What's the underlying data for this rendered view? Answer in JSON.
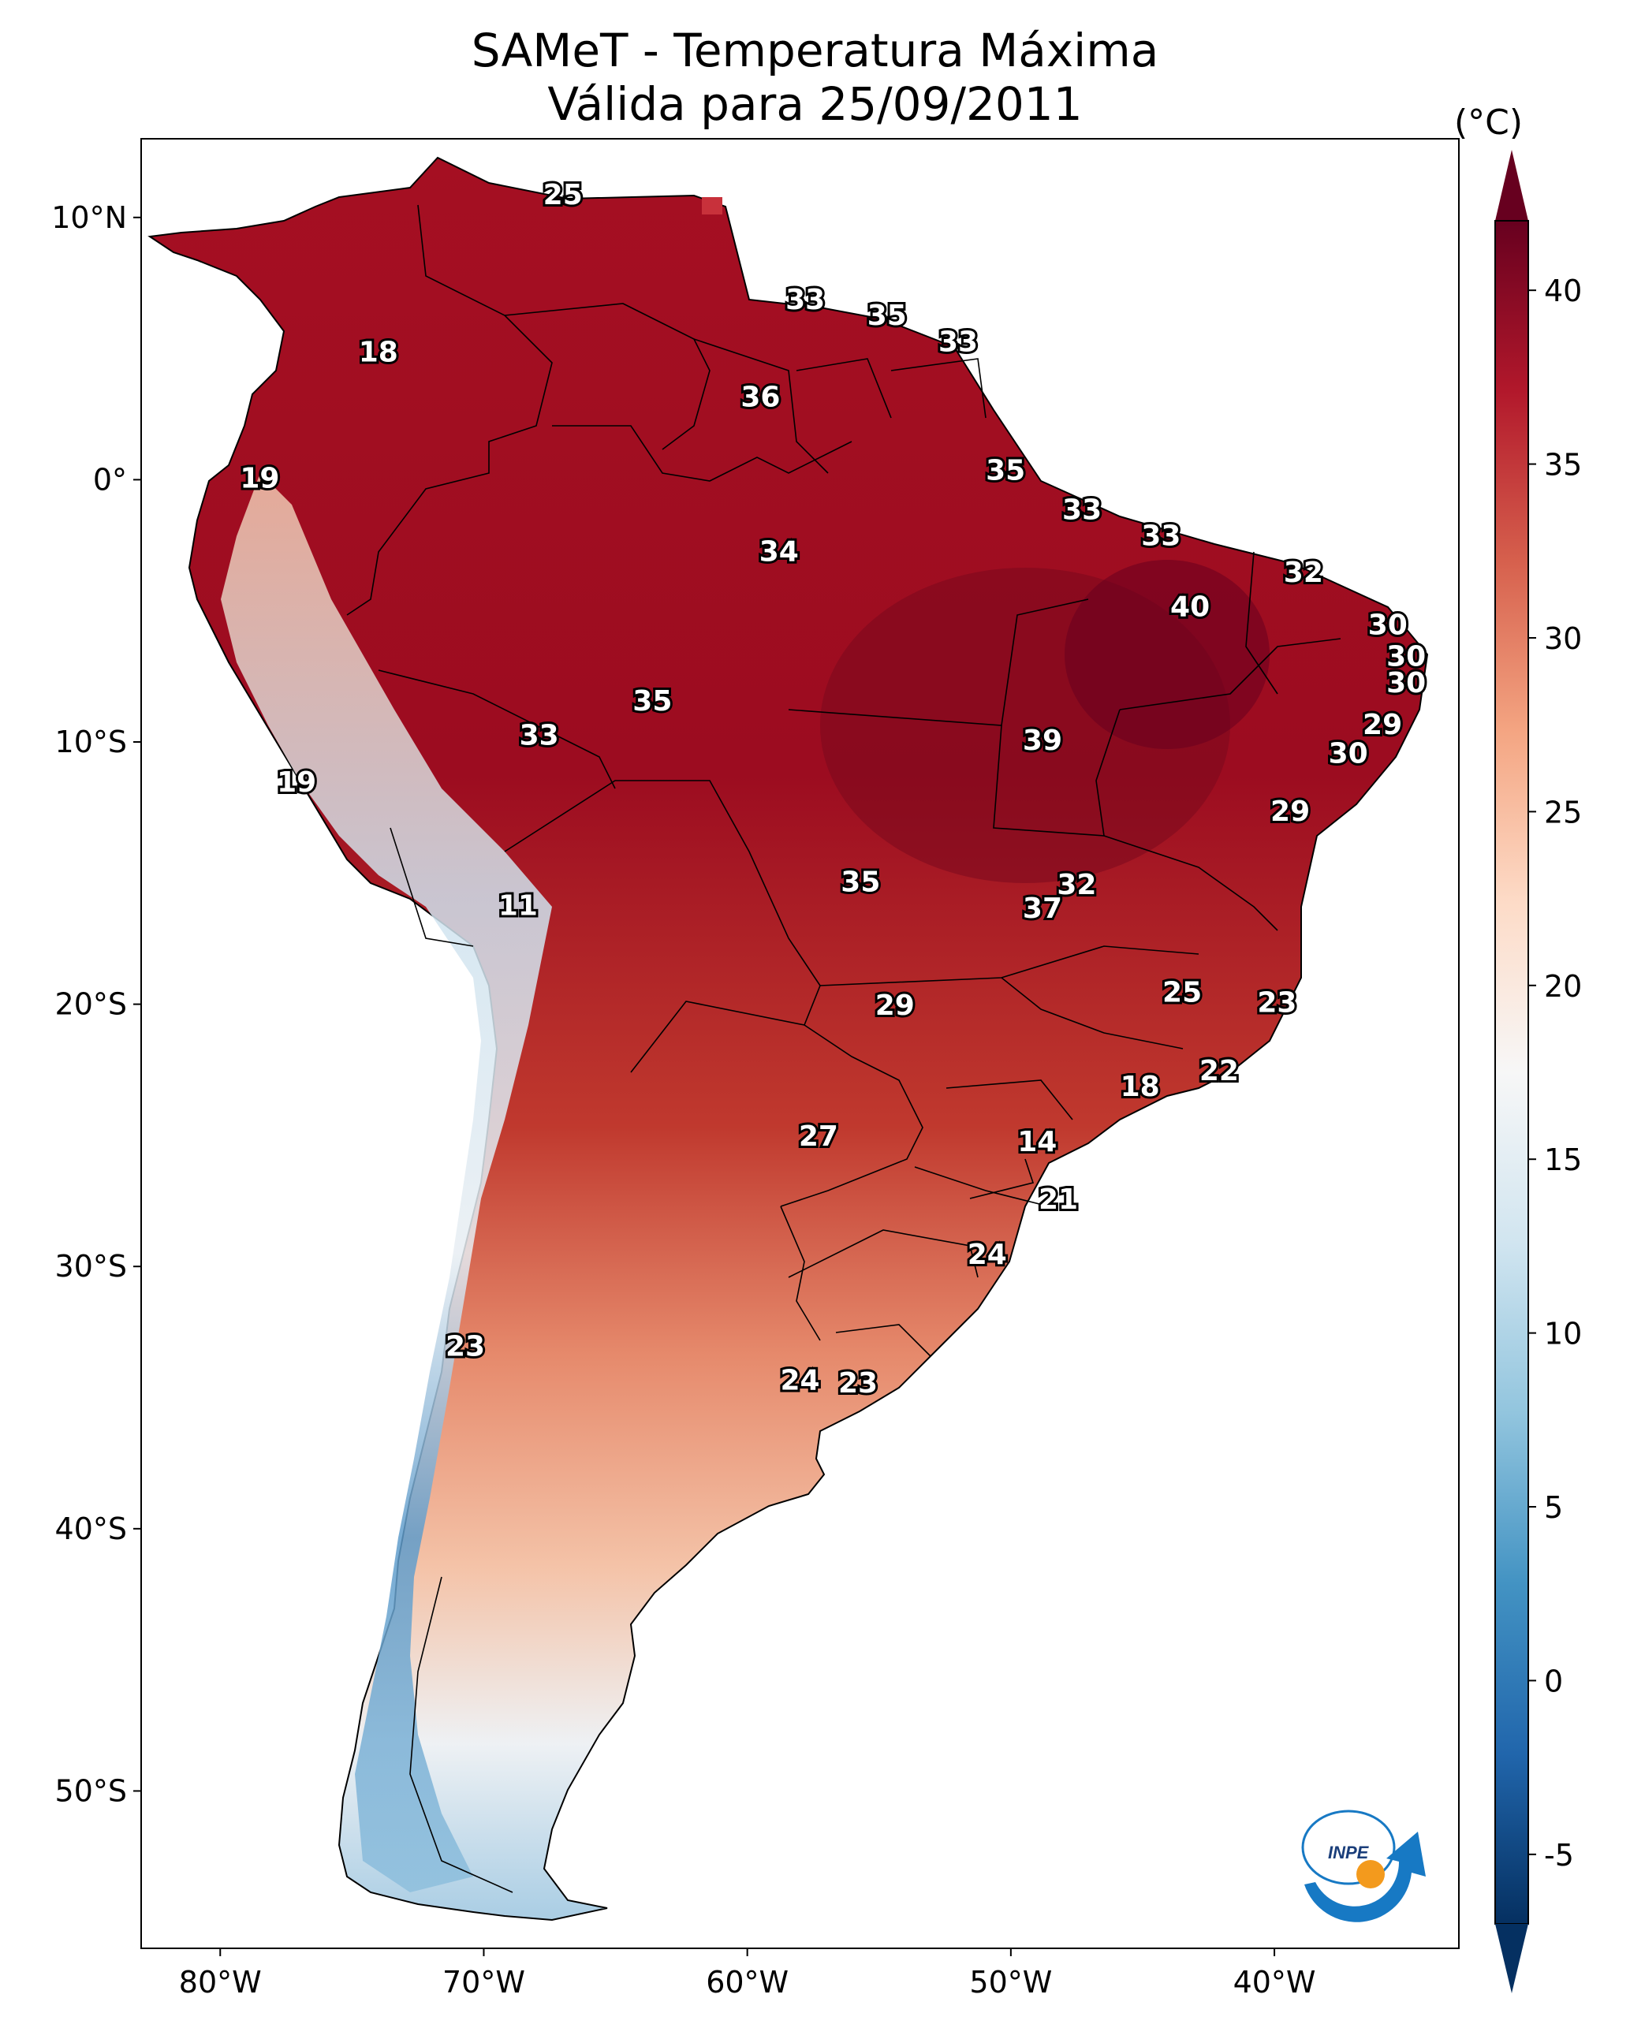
{
  "title": {
    "line1": "SAMeT - Temperatura Máxima",
    "line2": "Válida para 25/09/2011"
  },
  "axes": {
    "lat_ticks": [
      "10°N",
      "0°",
      "10°S",
      "20°S",
      "30°S",
      "40°S",
      "50°S"
    ],
    "lon_ticks": [
      "80°W",
      "70°W",
      "60°W",
      "50°W",
      "40°W"
    ]
  },
  "colorbar": {
    "unit": "(°C)",
    "ticks": [
      "40",
      "35",
      "30",
      "25",
      "20",
      "15",
      "10",
      "5",
      "0",
      "-5"
    ],
    "min": -7,
    "max": 42,
    "colors": [
      "#67001f",
      "#b2182b",
      "#d6604d",
      "#f4a582",
      "#fddbc7",
      "#f7f7f7",
      "#d1e5f0",
      "#92c5de",
      "#4393c3",
      "#2166ac",
      "#053061"
    ]
  },
  "logo": {
    "text": "INPE"
  },
  "chart_data": {
    "type": "map",
    "title": "SAMeT - Temperatura Máxima",
    "subtitle": "Válida para 25/09/2011",
    "variable": "Temperatura Máxima",
    "unit": "°C",
    "extent_lon": [
      -83,
      -33
    ],
    "extent_lat": [
      -56,
      13
    ],
    "colorbar_range": [
      -5,
      40
    ],
    "labels": [
      {
        "value": "25",
        "lon": -67,
        "lat": 10.5
      },
      {
        "value": "18",
        "lon": -74,
        "lat": 4.5
      },
      {
        "value": "33",
        "lon": -57.8,
        "lat": 6.5
      },
      {
        "value": "35",
        "lon": -54.7,
        "lat": 5.9
      },
      {
        "value": "33",
        "lon": -52,
        "lat": 4.9
      },
      {
        "value": "36",
        "lon": -59.5,
        "lat": 2.8
      },
      {
        "value": "19",
        "lon": -78.5,
        "lat": -0.3
      },
      {
        "value": "35",
        "lon": -50.2,
        "lat": 0
      },
      {
        "value": "33",
        "lon": -47.3,
        "lat": -1.5
      },
      {
        "value": "34",
        "lon": -58.8,
        "lat": -3.1
      },
      {
        "value": "33",
        "lon": -44.3,
        "lat": -2.5
      },
      {
        "value": "32",
        "lon": -38.9,
        "lat": -3.9
      },
      {
        "value": "40",
        "lon": -43.2,
        "lat": -5.2
      },
      {
        "value": "30",
        "lon": -35.7,
        "lat": -5.9
      },
      {
        "value": "30",
        "lon": -35,
        "lat": -7.1
      },
      {
        "value": "30",
        "lon": -35,
        "lat": -8.1
      },
      {
        "value": "35",
        "lon": -63.6,
        "lat": -8.8
      },
      {
        "value": "33",
        "lon": -67.9,
        "lat": -10.1
      },
      {
        "value": "39",
        "lon": -48.8,
        "lat": -10.3
      },
      {
        "value": "29",
        "lon": -35.9,
        "lat": -9.7
      },
      {
        "value": "30",
        "lon": -37.2,
        "lat": -10.8
      },
      {
        "value": "19",
        "lon": -77.1,
        "lat": -11.9
      },
      {
        "value": "29",
        "lon": -39.4,
        "lat": -13
      },
      {
        "value": "32",
        "lon": -47.5,
        "lat": -15.8
      },
      {
        "value": "35",
        "lon": -55.7,
        "lat": -15.7
      },
      {
        "value": "37",
        "lon": -48.8,
        "lat": -16.7
      },
      {
        "value": "11",
        "lon": -68.7,
        "lat": -16.6
      },
      {
        "value": "25",
        "lon": -43.5,
        "lat": -19.9
      },
      {
        "value": "23",
        "lon": -39.9,
        "lat": -20.3
      },
      {
        "value": "29",
        "lon": -54.4,
        "lat": -20.4
      },
      {
        "value": "22",
        "lon": -42.1,
        "lat": -22.9
      },
      {
        "value": "18",
        "lon": -45.1,
        "lat": -23.5
      },
      {
        "value": "27",
        "lon": -57.3,
        "lat": -25.4
      },
      {
        "value": "14",
        "lon": -49,
        "lat": -25.6
      },
      {
        "value": "21",
        "lon": -48.2,
        "lat": -27.8
      },
      {
        "value": "24",
        "lon": -50.9,
        "lat": -29.9
      },
      {
        "value": "23",
        "lon": -70.7,
        "lat": -33.4
      },
      {
        "value": "24",
        "lon": -58,
        "lat": -34.7
      },
      {
        "value": "23",
        "lon": -55.8,
        "lat": -34.8
      }
    ]
  }
}
